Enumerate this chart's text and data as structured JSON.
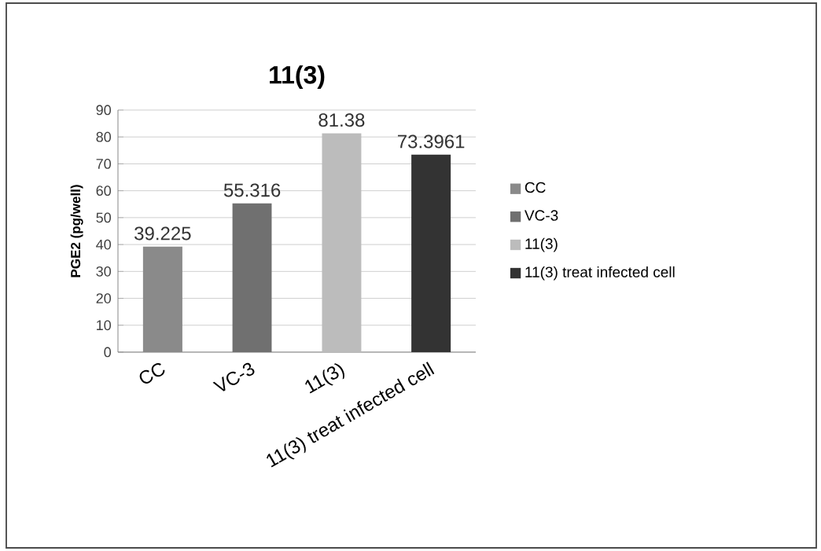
{
  "chart_data": {
    "type": "bar",
    "title": "11(3)",
    "ylabel": "PGE2 (pg/well)",
    "categories": [
      "CC",
      "VC-3",
      "11(3)",
      "11(3) treat infected cell"
    ],
    "series": [
      {
        "name": "CC",
        "color": "#8a8a8a",
        "values": [
          39.225,
          null,
          null,
          null
        ]
      },
      {
        "name": "VC-3",
        "color": "#707070",
        "values": [
          null,
          55.316,
          null,
          null
        ]
      },
      {
        "name": "11(3)",
        "color": "#bcbcbc",
        "values": [
          null,
          null,
          81.38,
          null
        ]
      },
      {
        "name": "11(3) treat infected cell",
        "color": "#333333",
        "values": [
          null,
          null,
          null,
          73.3961
        ]
      }
    ],
    "ylim": [
      0,
      90
    ],
    "yticks": [
      0,
      10,
      20,
      30,
      40,
      50,
      60,
      70,
      80,
      90
    ],
    "grid": "y",
    "legend": "right",
    "data_labels": true
  }
}
